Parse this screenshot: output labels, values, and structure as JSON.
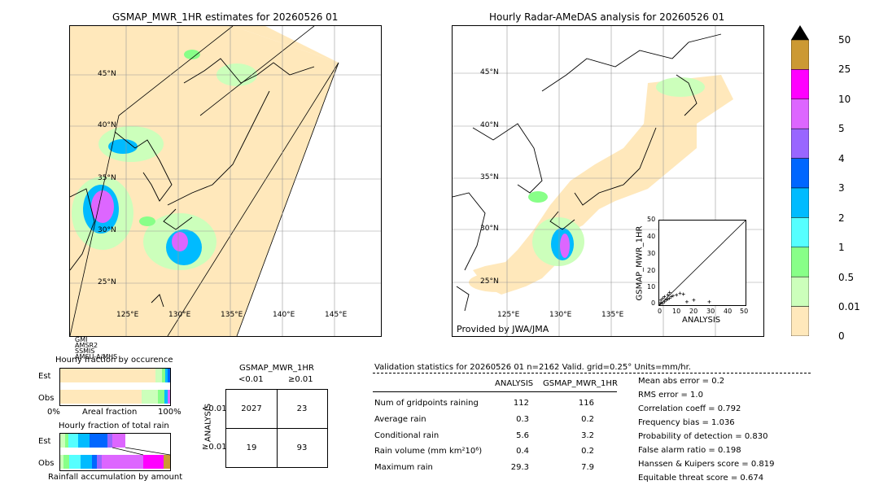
{
  "left_map": {
    "title": "GSMAP_MWR_1HR estimates for 20260526 01",
    "lat_labels": [
      "45°N",
      "40°N",
      "35°N",
      "30°N",
      "25°N"
    ],
    "lon_labels": [
      "125°E",
      "130°E",
      "135°E",
      "140°E",
      "145°E"
    ],
    "sensor_text": [
      "GMI",
      "AMSR2",
      "SSMIS",
      "AMSU-A/MHS"
    ]
  },
  "right_map": {
    "title": "Hourly Radar-AMeDAS analysis for 20260526 01",
    "lat_labels": [
      "45°N",
      "40°N",
      "35°N",
      "30°N",
      "25°N"
    ],
    "lon_labels": [
      "125°E",
      "130°E",
      "135°E"
    ],
    "credit": "Provided by JWA/JMA"
  },
  "colorbar": {
    "labels": [
      "50",
      "25",
      "10",
      "5",
      "4",
      "3",
      "2",
      "1",
      "0.5",
      "0.01",
      "0"
    ],
    "colors": [
      "#cc9933",
      "#ff00ff",
      "#dd66ff",
      "#9966ff",
      "#0066ff",
      "#00bbff",
      "#55ffff",
      "#88ff88",
      "#ccffbb",
      "#ffe8bb"
    ]
  },
  "scatter": {
    "ylabel": "GSMAP_MWR_1HR",
    "xlabel": "ANALYSIS",
    "ticks": [
      "0",
      "10",
      "20",
      "30",
      "40",
      "50"
    ]
  },
  "fraction_occurrence": {
    "title": "Hourly fraction by occurence",
    "rows": [
      "Est",
      "Obs"
    ],
    "xaxis_left": "0%",
    "xaxis_mid": "Areal fraction",
    "xaxis_right": "100%"
  },
  "fraction_total": {
    "title": "Hourly fraction of total rain",
    "rows": [
      "Est",
      "Obs"
    ],
    "xaxis_label": "Rainfall accumulation by amount"
  },
  "contingency": {
    "title": "GSMAP_MWR_1HR",
    "col_headers": [
      "<0.01",
      "≥0.01"
    ],
    "row_axis": "ANALYSIS",
    "row_headers": [
      "<0.01",
      "≥0.01"
    ],
    "cells": [
      [
        "2027",
        "23"
      ],
      [
        "19",
        "93"
      ]
    ]
  },
  "validation": {
    "header": "Validation statistics for 20260526 01  n=2162 Valid. grid=0.25° Units=mm/hr.",
    "col_analysis": "ANALYSIS",
    "col_gsmap": "GSMAP_MWR_1HR",
    "rows": [
      {
        "label": "Num of gridpoints raining",
        "analysis": "112",
        "gsmap": "116"
      },
      {
        "label": "Average rain",
        "analysis": "0.3",
        "gsmap": "0.2"
      },
      {
        "label": "Conditional rain",
        "analysis": "5.6",
        "gsmap": "3.2"
      },
      {
        "label": "Rain volume (mm km²10⁶)",
        "analysis": "0.4",
        "gsmap": "0.2"
      },
      {
        "label": "Maximum rain",
        "analysis": "29.3",
        "gsmap": "7.9"
      }
    ],
    "scores": [
      "Mean abs error =    0.2",
      "RMS error =    1.0",
      "Correlation coeff =  0.792",
      "Frequency bias =  1.036",
      "Probability of detection =  0.830",
      "False alarm ratio =  0.198",
      "Hanssen & Kuipers score =  0.819",
      "Equitable threat score =  0.674"
    ]
  },
  "chart_data": [
    {
      "type": "scatter",
      "xlabel": "ANALYSIS",
      "ylabel": "GSMAP_MWR_1HR",
      "xlim": [
        0,
        50
      ],
      "ylim": [
        0,
        50
      ],
      "points": [
        [
          0.5,
          0.5
        ],
        [
          1,
          1.5
        ],
        [
          2,
          1
        ],
        [
          3,
          2
        ],
        [
          4,
          3
        ],
        [
          5,
          3.5
        ],
        [
          6,
          4
        ],
        [
          7,
          5
        ],
        [
          8,
          5.5
        ],
        [
          10,
          6
        ],
        [
          12,
          7
        ],
        [
          14,
          6.5
        ],
        [
          16,
          2
        ],
        [
          20,
          3
        ],
        [
          29,
          2
        ],
        [
          1,
          3
        ],
        [
          2,
          4
        ],
        [
          3,
          5
        ],
        [
          5,
          6
        ],
        [
          6,
          7.5
        ]
      ]
    },
    {
      "type": "table",
      "title": "GSMAP_MWR_1HR",
      "columns": [
        "<0.01",
        "≥0.01"
      ],
      "rows": [
        "<0.01",
        "≥0.01"
      ],
      "values": [
        [
          2027,
          23
        ],
        [
          19,
          93
        ]
      ]
    }
  ]
}
